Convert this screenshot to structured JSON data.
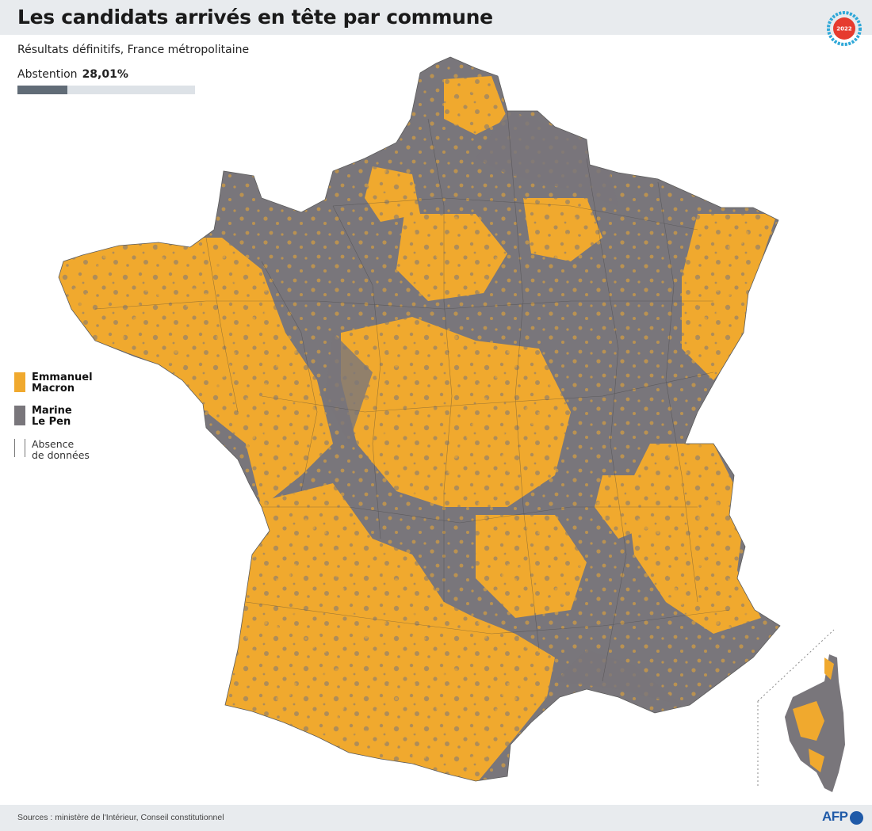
{
  "header": {
    "title": "Les candidats arrivés en tête par commune",
    "badge_text": "2022"
  },
  "subtitle": "Résultats définitifs, France métropolitaine",
  "abstention": {
    "label": "Abstention",
    "value_text": "28,01%",
    "value": 28.01
  },
  "legend": {
    "items": [
      {
        "line1": "Emmanuel",
        "line2": "Macron",
        "color": "#f0a92e"
      },
      {
        "line1": "Marine",
        "line2": "Le Pen",
        "color": "#79767b"
      },
      {
        "line1": "Absence",
        "line2": "de données",
        "color": "#ffffff"
      }
    ]
  },
  "colors": {
    "macron": "#f0a92e",
    "le_pen": "#79767b",
    "abstention_bar": "#616c77",
    "bar_track": "#dde2e7",
    "afp_blue": "#1f5aa8",
    "badge_ring": "#2fa8d8",
    "badge_red": "#e63b2e"
  },
  "footer": {
    "sources": "Sources : ministère de l'Intérieur, Conseil constitutionnel",
    "logo_text": "AFP"
  }
}
